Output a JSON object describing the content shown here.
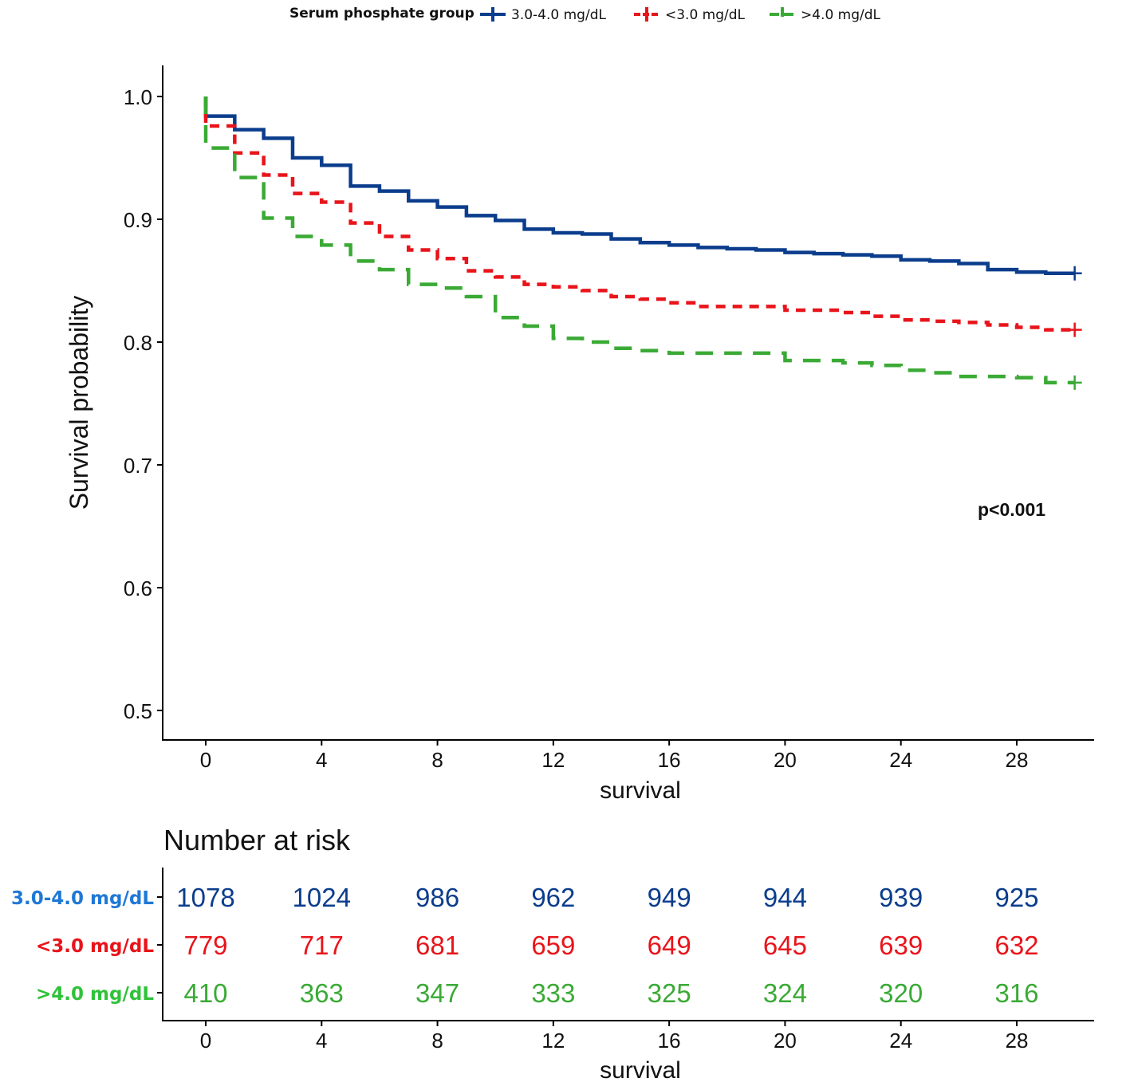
{
  "chart_data": {
    "type": "line",
    "subtype": "kaplan-meier step",
    "legend_title": "Serum phosphate group",
    "legend_position": "top",
    "xlabel": "survival",
    "ylabel": "Survival probability",
    "xlim": [
      -1.5,
      30.5
    ],
    "ylim": [
      0.475,
      1.025
    ],
    "x_ticks": [
      0,
      4,
      8,
      12,
      16,
      20,
      24,
      28
    ],
    "y_ticks": [
      "0.5",
      "0.6",
      "0.7",
      "0.8",
      "0.9",
      "1.0"
    ],
    "y_tick_values": [
      0.5,
      0.6,
      0.7,
      0.8,
      0.9,
      1.0
    ],
    "annotation": "p<0.001",
    "end_time": 30,
    "series": [
      {
        "name": "3.0-4.0 mg/dL",
        "color": "#0b3d8c",
        "dash": "solid",
        "start": 1.0,
        "values": [
          0.984,
          0.973,
          0.966,
          0.95,
          0.944,
          0.927,
          0.923,
          0.915,
          0.91,
          0.903,
          0.899,
          0.892,
          0.889,
          0.888,
          0.884,
          0.881,
          0.879,
          0.877,
          0.876,
          0.875,
          0.873,
          0.872,
          0.871,
          0.87,
          0.867,
          0.866,
          0.864,
          0.859,
          0.857,
          0.856
        ]
      },
      {
        "name": "<3.0 mg/dL",
        "color": "#e8141a",
        "dash": "short",
        "start": 1.0,
        "values": [
          0.976,
          0.954,
          0.936,
          0.921,
          0.914,
          0.897,
          0.886,
          0.875,
          0.868,
          0.858,
          0.853,
          0.847,
          0.845,
          0.842,
          0.837,
          0.835,
          0.832,
          0.829,
          0.829,
          0.829,
          0.826,
          0.826,
          0.824,
          0.821,
          0.818,
          0.817,
          0.816,
          0.814,
          0.812,
          0.81
        ]
      },
      {
        "name": ">4.0 mg/dL",
        "color": "#3aaa35",
        "dash": "long",
        "start": 1.0,
        "values": [
          0.958,
          0.934,
          0.901,
          0.886,
          0.879,
          0.866,
          0.859,
          0.847,
          0.844,
          0.837,
          0.82,
          0.813,
          0.803,
          0.8,
          0.795,
          0.793,
          0.791,
          0.791,
          0.791,
          0.791,
          0.785,
          0.785,
          0.783,
          0.781,
          0.777,
          0.775,
          0.772,
          0.772,
          0.771,
          0.767
        ]
      }
    ],
    "risk_table": {
      "title": "Number at risk",
      "xlabel": "survival",
      "times": [
        0,
        4,
        8,
        12,
        16,
        20,
        24,
        28
      ],
      "rows": [
        {
          "label": "3.0-4.0 mg/dL",
          "label_color": "#1f78d6",
          "color": "#0b3d8c",
          "values": [
            1078,
            1024,
            986,
            962,
            949,
            944,
            939,
            925
          ]
        },
        {
          "label": "<3.0 mg/dL",
          "label_color": "#e8141a",
          "color": "#e8141a",
          "values": [
            779,
            717,
            681,
            659,
            649,
            645,
            639,
            632
          ]
        },
        {
          "label": ">4.0 mg/dL",
          "label_color": "#2fc23a",
          "color": "#3aaa35",
          "values": [
            410,
            363,
            347,
            333,
            325,
            324,
            320,
            316
          ]
        }
      ]
    }
  }
}
